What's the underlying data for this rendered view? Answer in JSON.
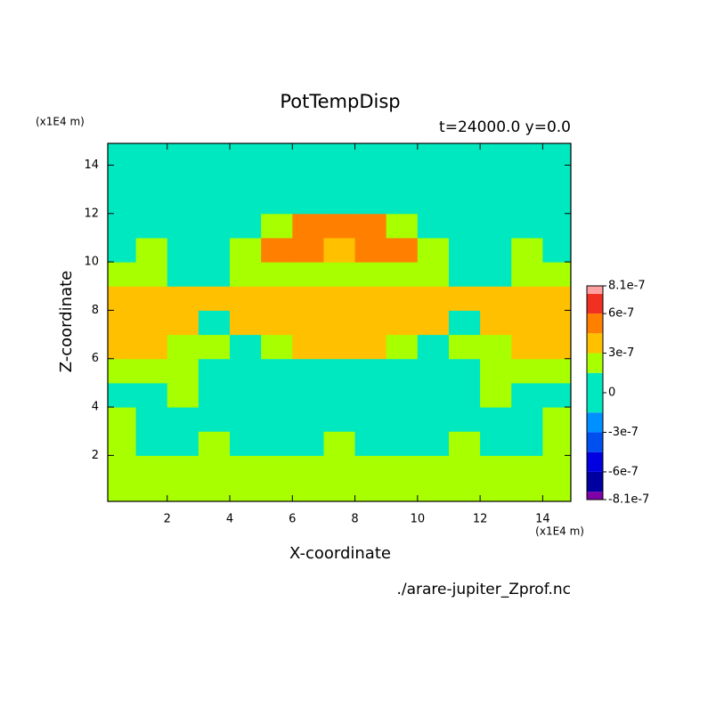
{
  "chart_data": {
    "type": "contour",
    "title": "PotTempDisp",
    "subtitle": "t=24000.0 y=0.0",
    "x_label": "X-coordinate",
    "y_label": "Z-coordinate",
    "x_unit": "(x1E4 m)",
    "y_unit": "(x1E4 m)",
    "source": "./arare-jupiter_Zprof.nc",
    "xlim": [
      0.1,
      14.9
    ],
    "ylim": [
      0.1,
      14.9
    ],
    "xticks": [
      2,
      4,
      6,
      8,
      10,
      12,
      14
    ],
    "yticks": [
      2,
      4,
      6,
      8,
      10,
      12,
      14
    ],
    "x": [
      0.5,
      1.5,
      2.5,
      3.5,
      4.5,
      5.5,
      6.5,
      7.5,
      8.5,
      9.5,
      10.5,
      11.5,
      12.5,
      13.5,
      14.5
    ],
    "z": [
      0.5,
      1.5,
      2.5,
      3.5,
      4.5,
      5.5,
      6.5,
      7.5,
      8.5,
      9.5,
      10.5,
      11.5,
      12.5,
      13.5,
      14.5
    ],
    "values": [
      [
        2.2e-07,
        2.2e-07,
        2.2e-07,
        2.2e-07,
        2.2e-07,
        2.2e-07,
        2.2e-07,
        2.2e-07,
        2.2e-07,
        2.2e-07,
        2.2e-07,
        2.2e-07,
        2.2e-07,
        2.2e-07,
        2.2e-07
      ],
      [
        2.2e-07,
        2.2e-07,
        2.2e-07,
        2.2e-07,
        2.2e-07,
        2.2e-07,
        2.2e-07,
        2.2e-07,
        2.2e-07,
        2.2e-07,
        2.2e-07,
        2.2e-07,
        2.2e-07,
        2.2e-07,
        2.2e-07
      ],
      [
        2.2e-07,
        5e-08,
        5e-08,
        2.2e-07,
        5e-08,
        5e-08,
        5e-08,
        2.2e-07,
        5e-08,
        5e-08,
        5e-08,
        2.2e-07,
        5e-08,
        5e-08,
        2.2e-07
      ],
      [
        2.2e-07,
        5e-08,
        5e-08,
        5e-08,
        5e-08,
        5e-08,
        5e-08,
        5e-08,
        5e-08,
        5e-08,
        5e-08,
        5e-08,
        5e-08,
        5e-08,
        2.2e-07
      ],
      [
        5e-08,
        5e-08,
        2.2e-07,
        5e-08,
        5e-08,
        5e-08,
        5e-08,
        5e-08,
        5e-08,
        5e-08,
        5e-08,
        5e-08,
        2.2e-07,
        5e-08,
        5e-08
      ],
      [
        2.2e-07,
        2.2e-07,
        2.2e-07,
        5e-08,
        5e-08,
        5e-08,
        5e-08,
        5e-08,
        5e-08,
        5e-08,
        5e-08,
        5e-08,
        2.2e-07,
        2.2e-07,
        2.2e-07
      ],
      [
        3.8e-07,
        3.8e-07,
        2.2e-07,
        2.2e-07,
        5e-08,
        2.2e-07,
        3.8e-07,
        3.8e-07,
        3.8e-07,
        2.2e-07,
        5e-08,
        2.2e-07,
        2.2e-07,
        3.8e-07,
        3.8e-07
      ],
      [
        3.8e-07,
        3.8e-07,
        3.8e-07,
        5e-08,
        3.8e-07,
        3.8e-07,
        3.8e-07,
        3.8e-07,
        3.8e-07,
        3.8e-07,
        3.8e-07,
        5e-08,
        3.8e-07,
        3.8e-07,
        3.8e-07
      ],
      [
        3.8e-07,
        3.8e-07,
        3.8e-07,
        3.8e-07,
        3.8e-07,
        3.8e-07,
        3.8e-07,
        3.8e-07,
        3.8e-07,
        3.8e-07,
        3.8e-07,
        3.8e-07,
        3.8e-07,
        3.8e-07,
        3.8e-07
      ],
      [
        2.2e-07,
        2.2e-07,
        5e-08,
        5e-08,
        2.2e-07,
        2.2e-07,
        2.2e-07,
        2.2e-07,
        2.2e-07,
        2.2e-07,
        2.2e-07,
        5e-08,
        5e-08,
        2.2e-07,
        2.2e-07
      ],
      [
        5e-08,
        2.2e-07,
        5e-08,
        5e-08,
        2.2e-07,
        5.5e-07,
        5.5e-07,
        3.8e-07,
        5.5e-07,
        5.5e-07,
        2.2e-07,
        5e-08,
        5e-08,
        2.2e-07,
        5e-08
      ],
      [
        5e-08,
        5e-08,
        5e-08,
        5e-08,
        5e-08,
        2.2e-07,
        5.5e-07,
        5.5e-07,
        5.5e-07,
        2.2e-07,
        5e-08,
        5e-08,
        5e-08,
        5e-08,
        5e-08
      ],
      [
        5e-08,
        5e-08,
        5e-08,
        5e-08,
        5e-08,
        5e-08,
        5e-08,
        5e-08,
        5e-08,
        5e-08,
        5e-08,
        5e-08,
        5e-08,
        5e-08,
        5e-08
      ],
      [
        5e-08,
        5e-08,
        5e-08,
        5e-08,
        5e-08,
        5e-08,
        5e-08,
        5e-08,
        5e-08,
        5e-08,
        5e-08,
        5e-08,
        5e-08,
        5e-08,
        5e-08
      ],
      [
        5e-08,
        5e-08,
        5e-08,
        5e-08,
        5e-08,
        5e-08,
        5e-08,
        5e-08,
        5e-08,
        5e-08,
        5e-08,
        5e-08,
        5e-08,
        5e-08,
        5e-08
      ]
    ],
    "colorbar": {
      "clim": [
        -8.1e-07,
        8.1e-07
      ],
      "levels": [
        -8.1e-07,
        -7.5e-07,
        -6e-07,
        -4.5e-07,
        -3e-07,
        -1.5e-07,
        1.5e-07,
        3e-07,
        4.5e-07,
        6e-07,
        7.5e-07,
        8.1e-07
      ],
      "colors": [
        "#8000a8",
        "#0000a0",
        "#0000e0",
        "#0050f0",
        "#0090ff",
        "#00e8c0",
        "#a8ff00",
        "#ffc000",
        "#ff8000",
        "#f03020",
        "#ffa0a0"
      ],
      "ticks": [
        8.1e-07,
        6e-07,
        3e-07,
        0,
        -3e-07,
        -6e-07,
        -8.1e-07
      ]
    }
  }
}
